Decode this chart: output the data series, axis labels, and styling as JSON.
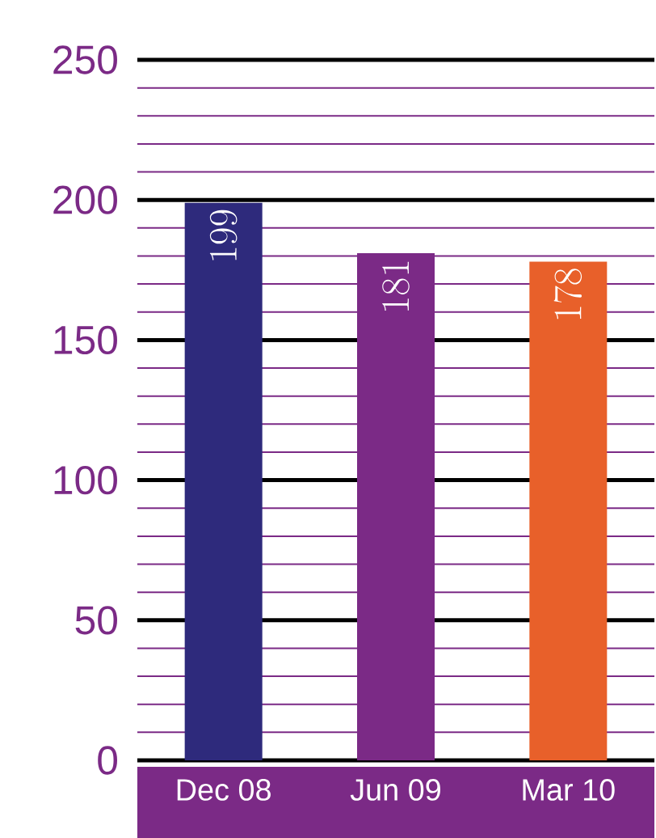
{
  "chart_data": {
    "type": "bar",
    "categories": [
      "Dec 08",
      "Jun 09",
      "Mar 10"
    ],
    "values": [
      199,
      181,
      178
    ],
    "colors": [
      "#2e2a7c",
      "#7b2a86",
      "#e8602a"
    ],
    "data_labels": true,
    "ylim": [
      0,
      250
    ],
    "yticks": [
      0,
      {
        "value": 10,
        "label": null
      },
      {
        "value": 20,
        "label": null
      },
      {
        "value": 30,
        "label": null
      },
      {
        "value": 40,
        "label": null
      },
      50,
      {
        "value": 60,
        "label": null
      },
      {
        "value": 70,
        "label": null
      },
      {
        "value": 80,
        "label": null
      },
      {
        "value": 90,
        "label": null
      },
      100,
      {
        "value": 110,
        "label": null
      },
      {
        "value": 120,
        "label": null
      },
      {
        "value": 130,
        "label": null
      },
      {
        "value": 140,
        "label": null
      },
      150,
      {
        "value": 160,
        "label": null
      },
      {
        "value": 170,
        "label": null
      },
      {
        "value": 180,
        "label": null
      },
      {
        "value": 190,
        "label": null
      },
      200,
      {
        "value": 210,
        "label": null
      },
      {
        "value": 220,
        "label": null
      },
      {
        "value": 230,
        "label": null
      },
      {
        "value": 240,
        "label": null
      },
      250
    ],
    "grid": "y"
  }
}
